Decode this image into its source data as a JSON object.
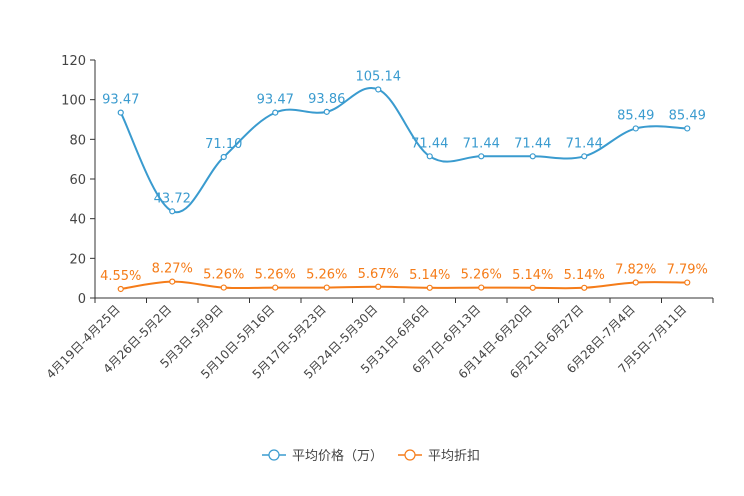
{
  "chart_data": {
    "type": "line",
    "title": "",
    "xlabel": "",
    "ylabel": "",
    "ylim": [
      0,
      120
    ],
    "yticks": [
      0,
      20,
      40,
      60,
      80,
      100,
      120
    ],
    "grid": false,
    "legend_position": "bottom-center",
    "categories": [
      "4月19日-4月25日",
      "4月26日-5月2日",
      "5月3日-5月9日",
      "5月10日-5月16日",
      "5月17日-5月23日",
      "5月24日-5月30日",
      "5月31日-6月6日",
      "6月7日-6月13日",
      "6月14日-6月20日",
      "6月21日-6月27日",
      "6月28日-7月4日",
      "7月5日-7月11日"
    ],
    "series": [
      {
        "name": "平均价格（万）",
        "color": "#3a9bcf",
        "values": [
          93.47,
          43.72,
          71.1,
          93.47,
          93.86,
          105.14,
          71.44,
          71.44,
          71.44,
          71.44,
          85.49,
          85.49
        ],
        "labels": [
          "93.47",
          "43.72",
          "71.10",
          "93.47",
          "93.86",
          "105.14",
          "71.44",
          "71.44",
          "71.44",
          "71.44",
          "85.49",
          "85.49"
        ]
      },
      {
        "name": "平均折扣",
        "color": "#f57c19",
        "values": [
          4.55,
          8.27,
          5.26,
          5.26,
          5.26,
          5.67,
          5.14,
          5.26,
          5.14,
          5.14,
          7.82,
          7.79
        ],
        "labels": [
          "4.55%",
          "8.27%",
          "5.26%",
          "5.26%",
          "5.26%",
          "5.67%",
          "5.14%",
          "5.26%",
          "5.14%",
          "5.14%",
          "7.82%",
          "7.79%"
        ]
      }
    ]
  }
}
